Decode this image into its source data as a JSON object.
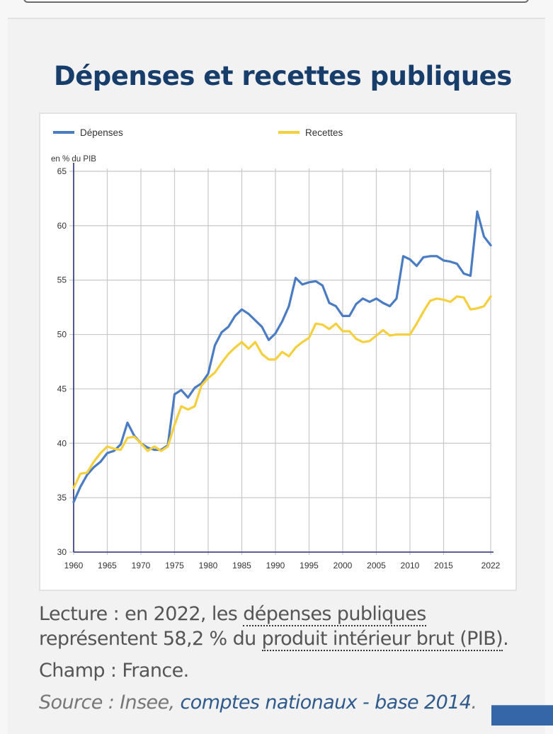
{
  "page": {
    "title": "Dépenses et recettes publiques",
    "lecture_prefix": "Lecture : en 2022, les ",
    "lecture_term1": "dépenses publiques",
    "lecture_mid": " représentent 58,2 % du ",
    "lecture_term2": "produit intérieur brut (PIB)",
    "lecture_suffix": ".",
    "champ": "Champ : France.",
    "source_prefix": "Source : Insee, ",
    "source_link": "comptes nationaux - base 2014",
    "source_suffix": "."
  },
  "chart_data": {
    "type": "line",
    "title": "Dépenses et recettes publiques",
    "ylabel": "en % du PIB",
    "xlabel": "",
    "ylim": [
      30,
      65
    ],
    "xlim": [
      1960,
      2022
    ],
    "yticks": [
      30,
      35,
      40,
      45,
      50,
      55,
      60,
      65
    ],
    "xticks": [
      1960,
      1965,
      1970,
      1975,
      1980,
      1985,
      1990,
      1995,
      2000,
      2005,
      2010,
      2015,
      2022
    ],
    "grid": true,
    "legend_position": "top",
    "x_start": 1960,
    "series": [
      {
        "name": "Dépenses",
        "color": "#4a7cc3",
        "values": [
          34.6,
          36.0,
          37.1,
          37.8,
          38.3,
          39.1,
          39.3,
          39.9,
          41.9,
          40.7,
          40.0,
          39.6,
          39.4,
          39.4,
          39.8,
          44.5,
          44.9,
          44.2,
          45.1,
          45.5,
          46.4,
          49.0,
          50.2,
          50.7,
          51.7,
          52.3,
          51.9,
          51.3,
          50.7,
          49.5,
          50.1,
          51.2,
          52.6,
          55.2,
          54.6,
          54.8,
          54.9,
          54.5,
          52.9,
          52.6,
          51.7,
          51.7,
          52.8,
          53.3,
          53.0,
          53.3,
          52.9,
          52.6,
          53.3,
          57.2,
          56.9,
          56.3,
          57.1,
          57.2,
          57.2,
          56.8,
          56.7,
          56.5,
          55.6,
          55.4,
          61.3,
          59.0,
          58.2
        ]
      },
      {
        "name": "Recettes",
        "color": "#f4d03f",
        "values": [
          35.9,
          37.2,
          37.3,
          38.3,
          39.1,
          39.7,
          39.5,
          39.4,
          40.5,
          40.6,
          40.0,
          39.3,
          39.7,
          39.3,
          39.7,
          41.7,
          43.4,
          43.1,
          43.4,
          45.3,
          46.0,
          46.5,
          47.4,
          48.2,
          48.8,
          49.3,
          48.7,
          49.3,
          48.2,
          47.7,
          47.7,
          48.4,
          48.0,
          48.8,
          49.3,
          49.7,
          51.0,
          50.9,
          50.5,
          51.0,
          50.3,
          50.3,
          49.6,
          49.3,
          49.4,
          49.9,
          50.4,
          49.9,
          50.0,
          50.0,
          50.0,
          51.0,
          52.1,
          53.1,
          53.3,
          53.2,
          53.0,
          53.5,
          53.4,
          52.3,
          52.4,
          52.6,
          53.5
        ]
      }
    ]
  }
}
